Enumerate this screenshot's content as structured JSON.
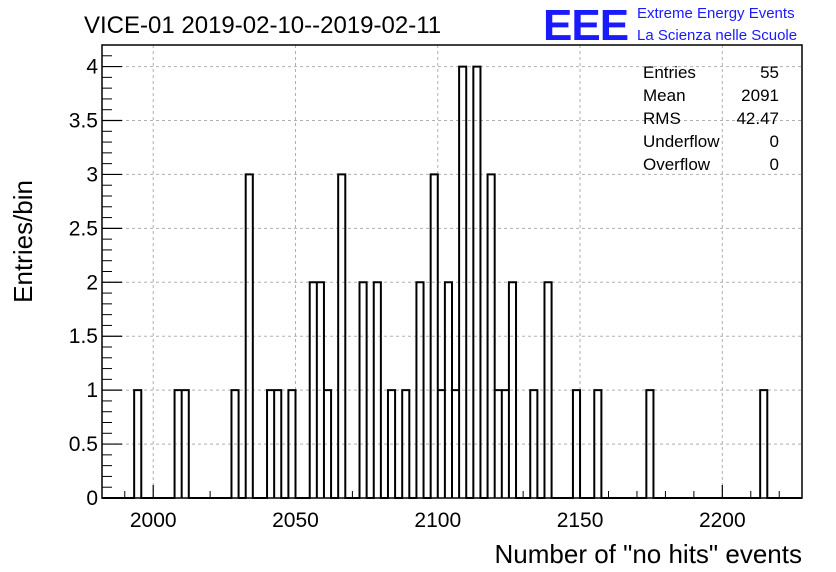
{
  "chart_data": {
    "type": "bar",
    "title": "VICE-01 2019-02-10--2019-02-11",
    "xlabel": "Number of \"no hits\" events",
    "ylabel": "Entries/bin",
    "xlim": [
      1982,
      2228
    ],
    "ylim": [
      0,
      4.2
    ],
    "bin_width": 2.5,
    "x_ticks": [
      "2000",
      "2050",
      "2100",
      "2150",
      "2200"
    ],
    "y_ticks": [
      "0",
      "0.5",
      "1",
      "1.5",
      "2",
      "2.5",
      "3",
      "3.5",
      "4"
    ],
    "grid": true,
    "bins": [
      {
        "low": 1993.3,
        "count": 1
      },
      {
        "low": 2007.5,
        "count": 1
      },
      {
        "low": 2010.0,
        "count": 1
      },
      {
        "low": 2027.5,
        "count": 1
      },
      {
        "low": 2032.5,
        "count": 3
      },
      {
        "low": 2040.0,
        "count": 1
      },
      {
        "low": 2042.5,
        "count": 1
      },
      {
        "low": 2047.5,
        "count": 1
      },
      {
        "low": 2055.0,
        "count": 2
      },
      {
        "low": 2057.5,
        "count": 2
      },
      {
        "low": 2060.0,
        "count": 1
      },
      {
        "low": 2065.0,
        "count": 3
      },
      {
        "low": 2072.5,
        "count": 2
      },
      {
        "low": 2077.5,
        "count": 2
      },
      {
        "low": 2082.5,
        "count": 1
      },
      {
        "low": 2087.5,
        "count": 1
      },
      {
        "low": 2092.5,
        "count": 2
      },
      {
        "low": 2097.5,
        "count": 3
      },
      {
        "low": 2100.0,
        "count": 1
      },
      {
        "low": 2102.5,
        "count": 2
      },
      {
        "low": 2105.0,
        "count": 1
      },
      {
        "low": 2107.5,
        "count": 4
      },
      {
        "low": 2112.5,
        "count": 4
      },
      {
        "low": 2117.5,
        "count": 3
      },
      {
        "low": 2120.0,
        "count": 1
      },
      {
        "low": 2122.5,
        "count": 1
      },
      {
        "low": 2125.0,
        "count": 2
      },
      {
        "low": 2132.5,
        "count": 1
      },
      {
        "low": 2137.5,
        "count": 2
      },
      {
        "low": 2147.5,
        "count": 1
      },
      {
        "low": 2155.0,
        "count": 1
      },
      {
        "low": 2173.3,
        "count": 1
      },
      {
        "low": 2213.3,
        "count": 1
      }
    ],
    "stats": [
      {
        "label": "Entries",
        "value": "55"
      },
      {
        "label": "Mean",
        "value": "2091"
      },
      {
        "label": "RMS",
        "value": "42.47"
      },
      {
        "label": "Underflow",
        "value": "0"
      },
      {
        "label": "Overflow",
        "value": "0"
      }
    ],
    "legend_position": "top-right",
    "line_color": "#000000"
  },
  "logo": {
    "mark": "EEE",
    "line1": "Extreme Energy Events",
    "line2": "La Scienza nelle Scuole",
    "color": "#1a1aff"
  }
}
